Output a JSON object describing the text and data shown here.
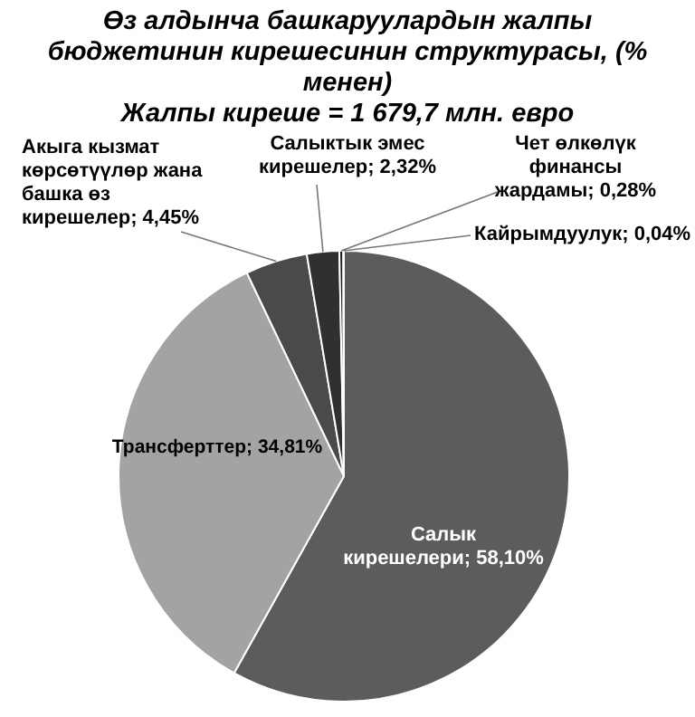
{
  "chart_data": {
    "type": "pie",
    "title": "Өз алдынча башкаруулардын жалпы бюджетинин кирешесинин структурасы, (% менен)",
    "subtitle": "Жалпы киреше = 1 679,7 млн. евро",
    "categories": [
      "Салык кирешелери",
      "Трансферттер",
      "Акыга кызмат көрсөтүүлөр жана башка өз кирешелер",
      "Салыктык эмес кирешелер",
      "Чет өлкөлүк финансы жардамы",
      "Кайрымдуулук"
    ],
    "values": [
      58.1,
      34.81,
      4.45,
      2.32,
      0.28,
      0.04
    ],
    "value_labels": [
      "58,10%",
      "34,81%",
      "4,45%",
      "2,32%",
      "0,28%",
      "0,04%"
    ],
    "colors": [
      "#5c5c5c",
      "#a3a3a3",
      "#4a4a4a",
      "#303030",
      "#1e1e1e",
      "#111111"
    ],
    "legend": false
  }
}
